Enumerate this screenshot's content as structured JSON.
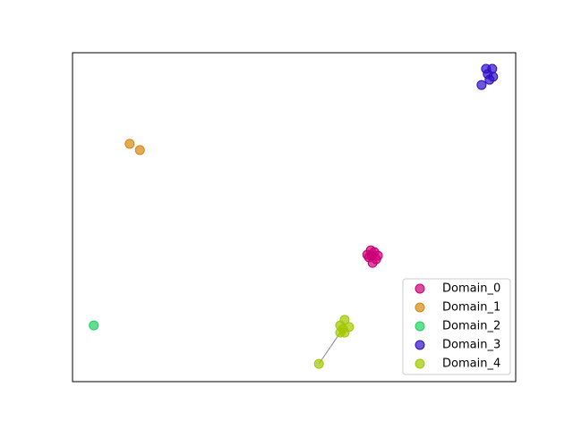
{
  "chart_data": {
    "type": "scatter",
    "xlim": [
      0,
      100
    ],
    "ylim": [
      0,
      100
    ],
    "legend": "lower right",
    "marker_opacity": 0.7,
    "series": [
      {
        "name": "Domain_0",
        "color": "#cc0077",
        "x": [
          67.3,
          68.1,
          66.9,
          68.5,
          67.7,
          66.5,
          68.9,
          67.5
        ],
        "y": [
          39.9,
          39.4,
          37.8,
          37.2,
          36.1,
          38.6,
          38.3,
          38.3
        ]
      },
      {
        "name": "Domain_1",
        "color": "#d4880f",
        "x": [
          12.9,
          15.2
        ],
        "y": [
          72.3,
          70.4
        ]
      },
      {
        "name": "Domain_2",
        "color": "#1fd160",
        "x": [
          4.8
        ],
        "y": [
          17.1
        ]
      },
      {
        "name": "Domain_3",
        "color": "#2f10c8",
        "x": [
          93.3,
          94.7,
          93.7,
          94.9,
          94.1,
          92.3
        ],
        "y": [
          95.1,
          95.1,
          93.5,
          92.7,
          91.8,
          90.2
        ]
      },
      {
        "name": "Domain_4",
        "color": "#a3c800",
        "x": [
          55.6,
          60.4,
          61.4,
          60.4,
          62.4,
          61.0,
          61.4
        ],
        "y": [
          5.4,
          14.9,
          18.8,
          17.1,
          16.6,
          16.0,
          14.9
        ]
      }
    ]
  }
}
